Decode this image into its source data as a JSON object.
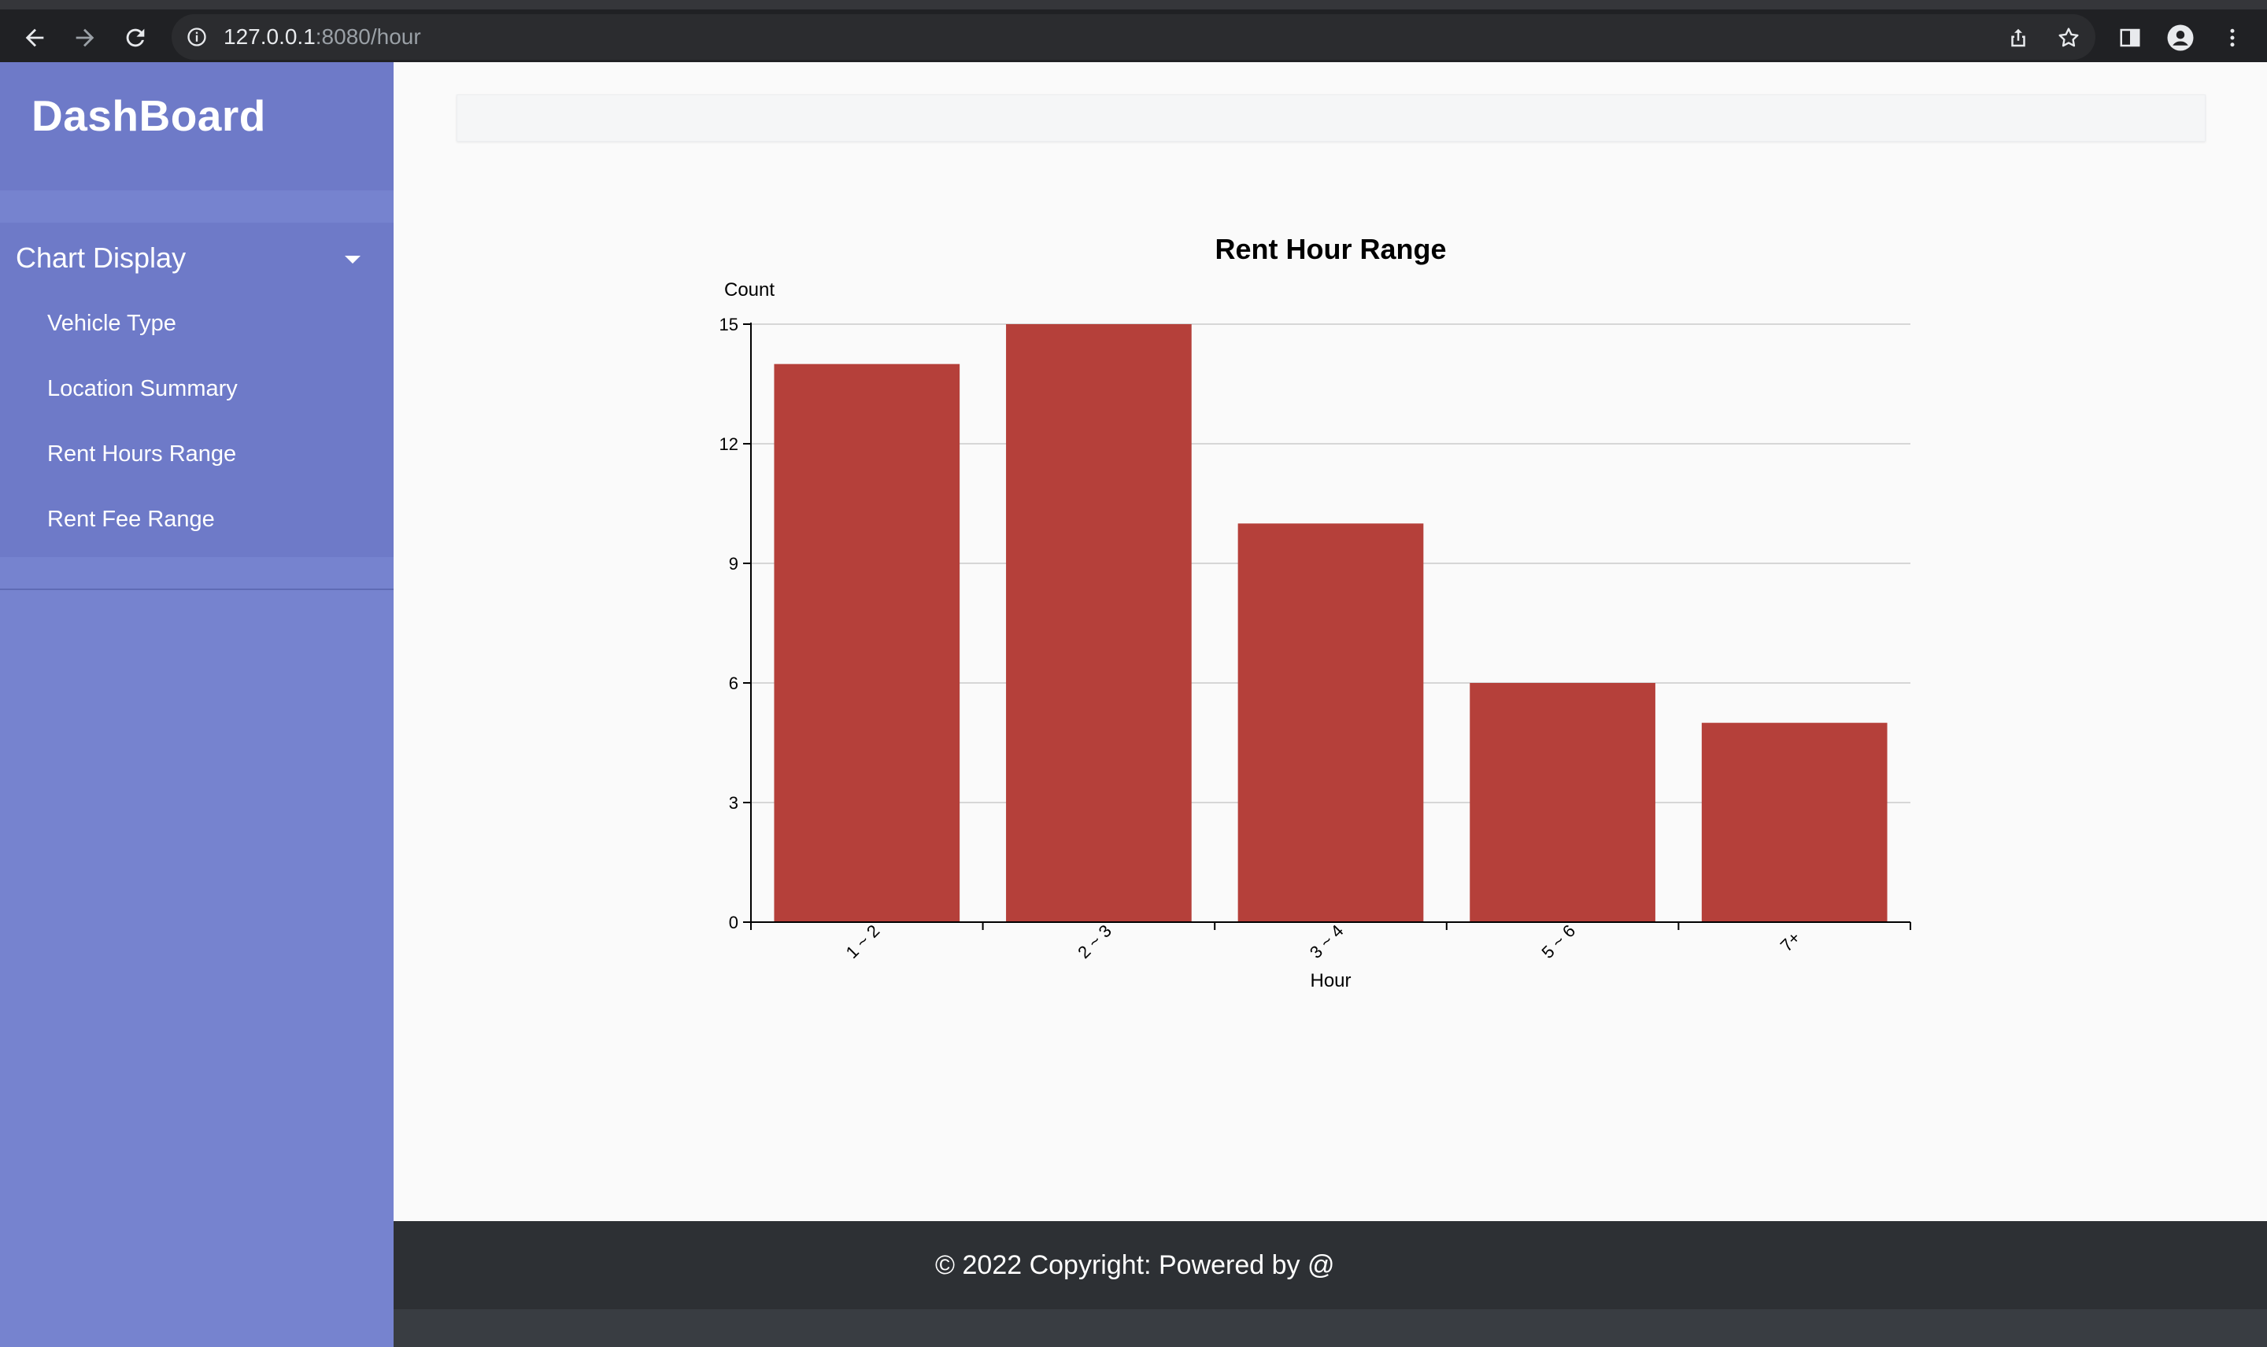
{
  "browser": {
    "url_host": "127.0.0.1",
    "url_rest": ":8080/hour"
  },
  "sidebar": {
    "brand": "DashBoard",
    "menu_header": "Chart Display",
    "items": [
      {
        "label": "Vehicle Type"
      },
      {
        "label": "Location Summary"
      },
      {
        "label": "Rent Hours Range"
      },
      {
        "label": "Rent Fee Range"
      }
    ]
  },
  "footer": {
    "copyright": "© 2022 Copyright: Powered by @"
  },
  "colors": {
    "sidebar": "#7683cf",
    "bar": "#b5403a",
    "footer": "#2d3034"
  },
  "chart_data": {
    "type": "bar",
    "title": "Rent Hour Range",
    "xlabel": "Hour",
    "ylabel": "Count",
    "categories": [
      "1 ~ 2",
      "2 ~ 3",
      "3 ~ 4",
      "5 ~ 6",
      "7+"
    ],
    "values": [
      14,
      15,
      10,
      6,
      5
    ],
    "ylim": [
      0,
      15
    ],
    "yticks": [
      0,
      3,
      6,
      9,
      12,
      15
    ],
    "grid": true,
    "legend": "none"
  }
}
